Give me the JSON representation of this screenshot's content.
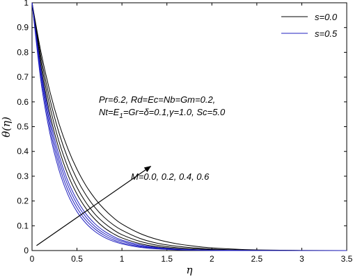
{
  "chart_data": {
    "type": "line",
    "xlabel": "η",
    "ylabel": "θ(η)",
    "xlim": [
      0,
      3.5
    ],
    "ylim": [
      0,
      1
    ],
    "x_ticks": [
      "0",
      "0.5",
      "1",
      "1.5",
      "2",
      "2.5",
      "3",
      "3.5"
    ],
    "y_ticks": [
      "0",
      "0.1",
      "0.2",
      "0.3",
      "0.4",
      "0.5",
      "0.6",
      "0.7",
      "0.8",
      "0.9",
      "1"
    ],
    "grid": false,
    "legend": {
      "placement": "top-right",
      "entries": [
        {
          "label": "s=0.0",
          "color": "#000000"
        },
        {
          "label": "s=0.5",
          "color": "#1f1fbf"
        }
      ]
    },
    "annotations": {
      "params_line1": "Pr=6.2, Rd=Ec=Nb=Gm=0.2,",
      "params_line2_a": "Nt=E",
      "params_line2_sub": "1",
      "params_line2_b": "=Gr=δ=0.1,γ=1.0, Sc=5.0",
      "arrow_label": "M=0.0, 0.2, 0.4, 0.6",
      "arrow_from": [
        0.05,
        0.02
      ],
      "arrow_to": [
        1.32,
        0.34
      ]
    },
    "series": [
      {
        "group": "s=0.0",
        "M": 0.0,
        "color": "#000000",
        "x": [
          0,
          0.1,
          0.2,
          0.3,
          0.4,
          0.5,
          0.6,
          0.7,
          0.8,
          0.9,
          1.0,
          1.2,
          1.4,
          1.6,
          1.8,
          2.0,
          2.3,
          2.6,
          3.0,
          3.5
        ],
        "y": [
          1,
          0.74,
          0.55,
          0.41,
          0.305,
          0.228,
          0.17,
          0.126,
          0.093,
          0.069,
          0.051,
          0.028,
          0.015,
          0.008,
          0.004,
          0.002,
          0.0008,
          0.0003,
          0.0001,
          0
        ]
      },
      {
        "group": "s=0.0",
        "M": 0.2,
        "color": "#000000",
        "x": [
          0,
          0.1,
          0.2,
          0.3,
          0.4,
          0.5,
          0.6,
          0.7,
          0.8,
          0.9,
          1.0,
          1.2,
          1.4,
          1.6,
          1.8,
          2.0,
          2.3,
          2.6,
          3.0,
          3.5
        ],
        "y": [
          1,
          0.76,
          0.58,
          0.44,
          0.335,
          0.255,
          0.194,
          0.147,
          0.112,
          0.085,
          0.064,
          0.037,
          0.021,
          0.012,
          0.007,
          0.004,
          0.0015,
          0.0005,
          0.0001,
          0
        ]
      },
      {
        "group": "s=0.0",
        "M": 0.4,
        "color": "#000000",
        "x": [
          0,
          0.1,
          0.2,
          0.3,
          0.4,
          0.5,
          0.6,
          0.7,
          0.8,
          0.9,
          1.0,
          1.2,
          1.4,
          1.6,
          1.8,
          2.0,
          2.3,
          2.6,
          3.0,
          3.5
        ],
        "y": [
          1,
          0.78,
          0.61,
          0.475,
          0.37,
          0.288,
          0.224,
          0.174,
          0.135,
          0.105,
          0.082,
          0.049,
          0.029,
          0.018,
          0.011,
          0.006,
          0.0025,
          0.001,
          0.0002,
          0
        ]
      },
      {
        "group": "s=0.0",
        "M": 0.6,
        "color": "#000000",
        "x": [
          0,
          0.1,
          0.2,
          0.3,
          0.4,
          0.5,
          0.6,
          0.7,
          0.8,
          0.9,
          1.0,
          1.2,
          1.4,
          1.6,
          1.8,
          2.0,
          2.3,
          2.6,
          3.0,
          3.5
        ],
        "y": [
          1,
          0.8,
          0.64,
          0.512,
          0.41,
          0.328,
          0.262,
          0.21,
          0.168,
          0.134,
          0.107,
          0.069,
          0.044,
          0.028,
          0.018,
          0.011,
          0.005,
          0.002,
          0.0005,
          0
        ]
      },
      {
        "group": "s=0.5",
        "M": 0.0,
        "color": "#1f1fbf",
        "x": [
          0,
          0.1,
          0.2,
          0.3,
          0.4,
          0.5,
          0.6,
          0.7,
          0.8,
          0.9,
          1.0,
          1.2,
          1.4,
          1.6,
          1.8,
          2.0,
          2.3,
          2.6,
          3.0,
          3.5
        ],
        "y": [
          1,
          0.68,
          0.47,
          0.325,
          0.225,
          0.157,
          0.11,
          0.077,
          0.054,
          0.038,
          0.027,
          0.013,
          0.0065,
          0.003,
          0.0015,
          0.0007,
          0.0002,
          0.0001,
          0,
          0
        ]
      },
      {
        "group": "s=0.5",
        "M": 0.2,
        "color": "#1f1fbf",
        "x": [
          0,
          0.1,
          0.2,
          0.3,
          0.4,
          0.5,
          0.6,
          0.7,
          0.8,
          0.9,
          1.0,
          1.2,
          1.4,
          1.6,
          1.8,
          2.0,
          2.3,
          2.6,
          3.0,
          3.5
        ],
        "y": [
          1,
          0.7,
          0.49,
          0.345,
          0.243,
          0.172,
          0.122,
          0.087,
          0.062,
          0.044,
          0.031,
          0.016,
          0.008,
          0.004,
          0.002,
          0.001,
          0.0003,
          0.0001,
          0,
          0
        ]
      },
      {
        "group": "s=0.5",
        "M": 0.4,
        "color": "#1f1fbf",
        "x": [
          0,
          0.1,
          0.2,
          0.3,
          0.4,
          0.5,
          0.6,
          0.7,
          0.8,
          0.9,
          1.0,
          1.2,
          1.4,
          1.6,
          1.8,
          2.0,
          2.3,
          2.6,
          3.0,
          3.5
        ],
        "y": [
          1,
          0.715,
          0.51,
          0.365,
          0.262,
          0.188,
          0.135,
          0.097,
          0.07,
          0.051,
          0.037,
          0.019,
          0.01,
          0.005,
          0.0027,
          0.0014,
          0.0005,
          0.0002,
          0,
          0
        ]
      },
      {
        "group": "s=0.5",
        "M": 0.6,
        "color": "#1f1fbf",
        "x": [
          0,
          0.1,
          0.2,
          0.3,
          0.4,
          0.5,
          0.6,
          0.7,
          0.8,
          0.9,
          1.0,
          1.2,
          1.4,
          1.6,
          1.8,
          2.0,
          2.3,
          2.6,
          3.0,
          3.5
        ],
        "y": [
          1,
          0.73,
          0.53,
          0.385,
          0.28,
          0.204,
          0.148,
          0.108,
          0.079,
          0.058,
          0.042,
          0.023,
          0.012,
          0.0065,
          0.0035,
          0.0019,
          0.0007,
          0.0003,
          0.0001,
          0
        ]
      }
    ]
  }
}
